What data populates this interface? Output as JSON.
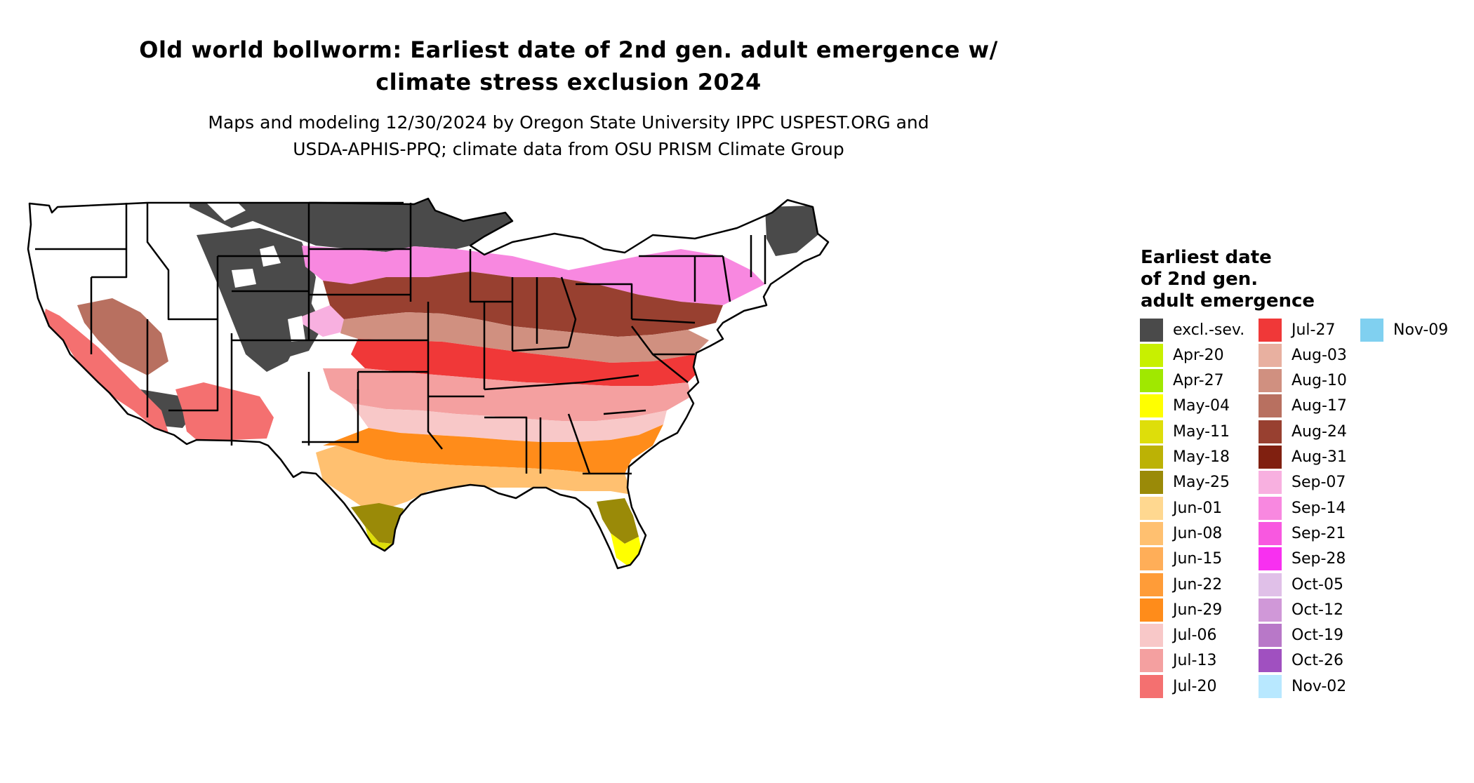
{
  "title_line1": "Old world bollworm: Earliest date of 2nd gen. adult emergence w/",
  "title_line2": "climate stress exclusion 2024",
  "subtitle_line1": "Maps and modeling 12/30/2024 by Oregon State University IPPC USPEST.ORG and",
  "subtitle_line2": "USDA-APHIS-PPQ; climate data from OSU PRISM Climate Group",
  "legend": {
    "title_line1": "Earliest date",
    "title_line2": "of 2nd gen.",
    "title_line3": "adult emergence",
    "items": [
      {
        "label": "excl.-sev.",
        "color": "#4a4a4a"
      },
      {
        "label": "Apr-20",
        "color": "#c8f000"
      },
      {
        "label": "Apr-27",
        "color": "#a0e800"
      },
      {
        "label": "May-04",
        "color": "#ffff00"
      },
      {
        "label": "May-11",
        "color": "#dede0a"
      },
      {
        "label": "May-18",
        "color": "#bcb205"
      },
      {
        "label": "May-25",
        "color": "#9a8a08"
      },
      {
        "label": "Jun-01",
        "color": "#ffd890"
      },
      {
        "label": "Jun-08",
        "color": "#ffc070"
      },
      {
        "label": "Jun-15",
        "color": "#ffae58"
      },
      {
        "label": "Jun-22",
        "color": "#ff9c38"
      },
      {
        "label": "Jun-29",
        "color": "#ff8c1a"
      },
      {
        "label": "Jul-06",
        "color": "#f8c8c8"
      },
      {
        "label": "Jul-13",
        "color": "#f4a0a0"
      },
      {
        "label": "Jul-20",
        "color": "#f47070"
      },
      {
        "label": "Jul-27",
        "color": "#f03838"
      },
      {
        "label": "Aug-03",
        "color": "#e8b0a0"
      },
      {
        "label": "Aug-10",
        "color": "#d09080"
      },
      {
        "label": "Aug-17",
        "color": "#b87060"
      },
      {
        "label": "Aug-24",
        "color": "#984030"
      },
      {
        "label": "Aug-31",
        "color": "#802010"
      },
      {
        "label": "Sep-07",
        "color": "#f8b0e0"
      },
      {
        "label": "Sep-14",
        "color": "#f888e0"
      },
      {
        "label": "Sep-21",
        "color": "#f858e0"
      },
      {
        "label": "Sep-28",
        "color": "#f830f0"
      },
      {
        "label": "Oct-05",
        "color": "#e0c0e8"
      },
      {
        "label": "Oct-12",
        "color": "#d098d8"
      },
      {
        "label": "Oct-19",
        "color": "#b878c8"
      },
      {
        "label": "Oct-26",
        "color": "#a050c0"
      },
      {
        "label": "Nov-02",
        "color": "#b8e8ff"
      },
      {
        "label": "Nov-09",
        "color": "#80d0f0"
      }
    ]
  },
  "colors": {
    "outline": "#000000",
    "background": "#ffffff",
    "unsuitable": "#ffffff"
  }
}
